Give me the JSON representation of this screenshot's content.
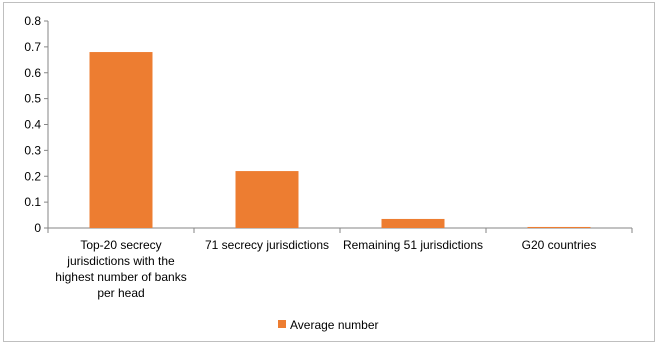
{
  "chart_data": {
    "type": "bar",
    "title": "",
    "xlabel": "",
    "ylabel": "",
    "categories": [
      "Top-20 secrecy jurisdictions with the highest number of banks per head",
      "71 secrecy jurisdictions",
      "Remaining 51 jurisdictions",
      "G20 countries"
    ],
    "category_lines": [
      [
        "Top-20 secrecy",
        "jurisdictions with the",
        "highest number of banks",
        "per head"
      ],
      [
        "71 secrecy jurisdictions"
      ],
      [
        "Remaining 51 jurisdictions"
      ],
      [
        "G20 countries"
      ]
    ],
    "series": [
      {
        "name": "Average number",
        "values": [
          0.68,
          0.22,
          0.035,
          0.004
        ],
        "color": "#ed7d31"
      }
    ],
    "ylim": [
      0,
      0.8
    ],
    "yticks": [
      "0",
      "0.1",
      "0.2",
      "0.3",
      "0.4",
      "0.5",
      "0.6",
      "0.7",
      "0.8"
    ],
    "grid": false,
    "legend_position": "bottom"
  }
}
